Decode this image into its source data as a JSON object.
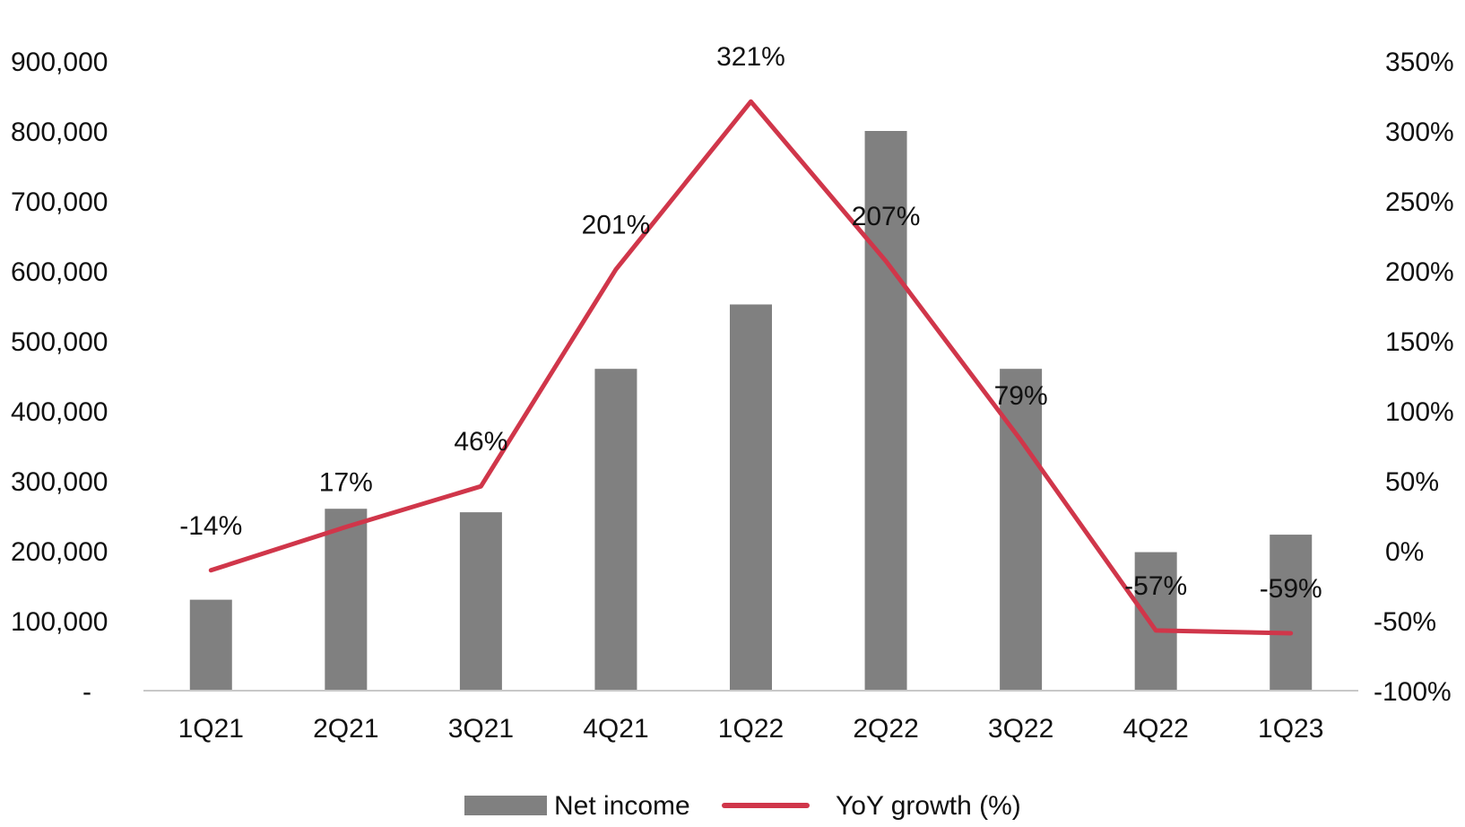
{
  "chart_data": {
    "type": "bar",
    "categories": [
      "1Q21",
      "2Q21",
      "3Q21",
      "4Q21",
      "1Q22",
      "2Q22",
      "3Q22",
      "4Q22",
      "1Q23"
    ],
    "series": [
      {
        "name": "Net income",
        "type": "bar",
        "axis": "left",
        "color": "#808080",
        "values": [
          130000,
          260000,
          255000,
          460000,
          552000,
          800000,
          460000,
          198000,
          223000
        ]
      },
      {
        "name": "YoY growth (%)",
        "type": "line",
        "axis": "right",
        "color": "#d0364a",
        "values": [
          -14,
          17,
          46,
          201,
          321,
          207,
          79,
          -57,
          -59
        ],
        "data_labels": [
          "-14%",
          "17%",
          "46%",
          "201%",
          "321%",
          "207%",
          "79%",
          "-57%",
          "-59%"
        ]
      }
    ],
    "y_left": {
      "ylim": [
        0,
        900000
      ],
      "tick_values": [
        0,
        100000,
        200000,
        300000,
        400000,
        500000,
        600000,
        700000,
        800000,
        900000
      ],
      "tick_labels": [
        "-",
        "100,000",
        "200,000",
        "300,000",
        "400,000",
        "500,000",
        "600,000",
        "700,000",
        "800,000",
        "900,000"
      ]
    },
    "y_right": {
      "ylim": [
        -100,
        350
      ],
      "tick_values": [
        -100,
        -50,
        0,
        50,
        100,
        150,
        200,
        250,
        300,
        350
      ],
      "tick_labels": [
        "-100%",
        "-50%",
        "0%",
        "50%",
        "100%",
        "150%",
        "200%",
        "250%",
        "300%",
        "350%"
      ]
    },
    "grid": false,
    "legend": {
      "position": "bottom"
    }
  }
}
